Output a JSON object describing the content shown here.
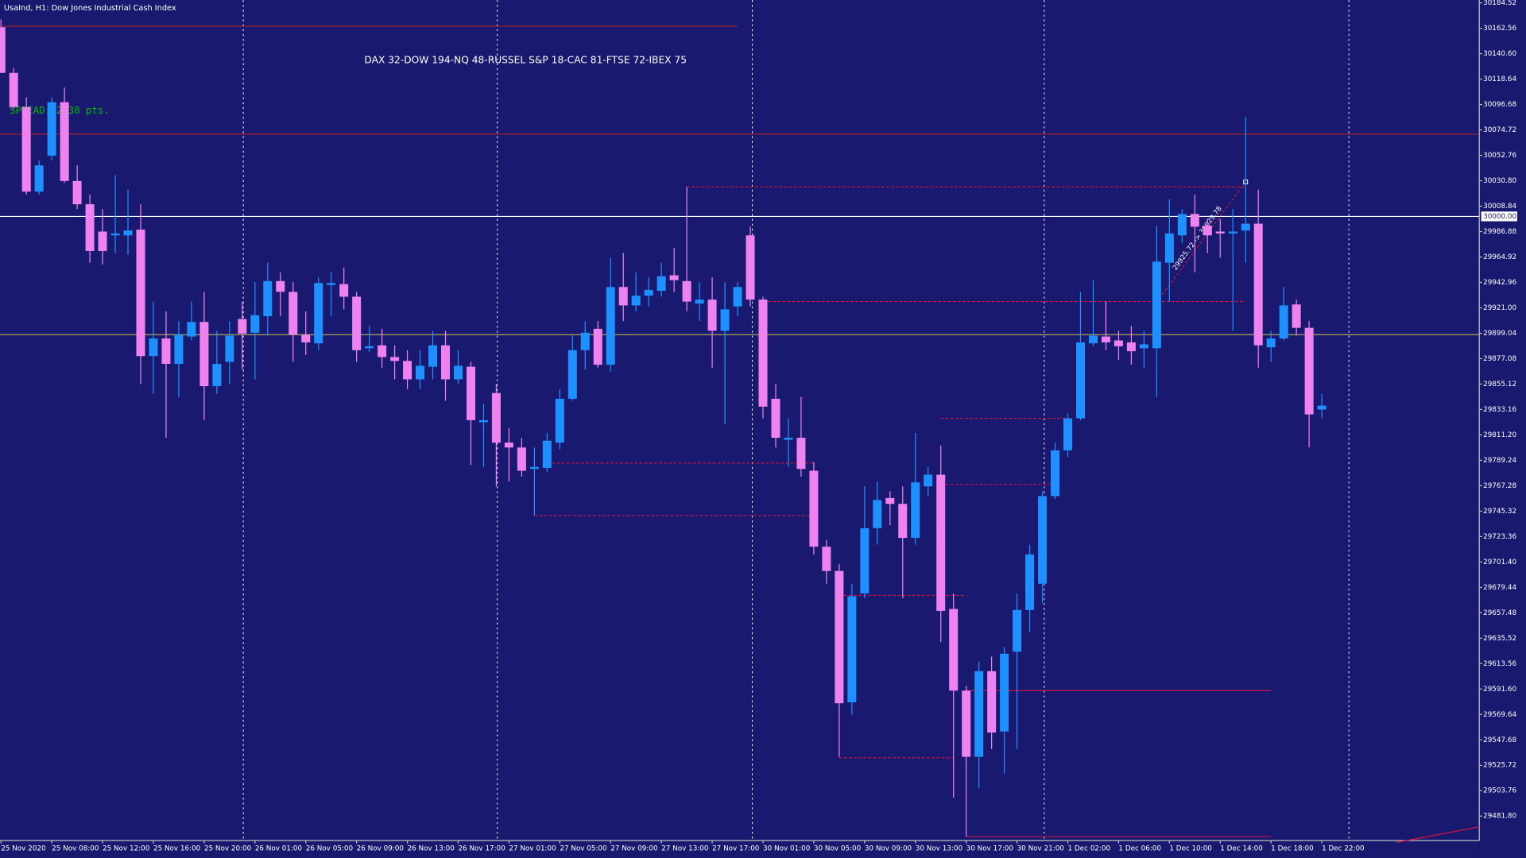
{
  "chart_data": {
    "type": "candlestick",
    "title": "UsaInd, H1: Dow Jones Industrial Cash Index",
    "annotation": "DAX 32-DOW 194-NQ 48-RUSSEL S&P 18-CAC 81-FTSE 72-IBEX 75",
    "spread_text": "SPREAD: 2.38 pts.",
    "up_color": "#1e90ff",
    "down_color": "#ee82ee",
    "ylim": [
      29460.7,
      30187.0
    ],
    "yticks": [
      30184.52,
      30162.56,
      {
        "value": 30140.6,
        "label": "30140.60"
      },
      30118.64,
      30096.68,
      30074.72,
      30052.76,
      {
        "value": 30030.8,
        "label": "30030.80"
      },
      30008.84,
      29986.88,
      29964.92,
      29942.96,
      {
        "value": 29921,
        "label": "29921.00"
      },
      29899.04,
      29877.08,
      29855.12,
      29833.16,
      {
        "value": 29811.2,
        "label": "29811.20"
      },
      29789.24,
      29767.28,
      29745.32,
      29723.36,
      {
        "value": 29701.4,
        "label": "29701.40"
      },
      29679.44,
      29657.48,
      29635.52,
      29613.56,
      {
        "value": 29591.6,
        "label": "29591.60"
      },
      29569.64,
      29547.68,
      29525.72,
      29503.76,
      {
        "value": 29481.8,
        "label": "29481.80"
      }
    ],
    "categories": [
      "25 Nov 2020",
      null,
      null,
      null,
      "25 Nov 08:00",
      null,
      null,
      null,
      "25 Nov 12:00",
      null,
      null,
      null,
      "25 Nov 16:00",
      null,
      null,
      null,
      "25 Nov 20:00",
      null,
      null,
      null,
      "26 Nov 01:00",
      null,
      null,
      null,
      "26 Nov 05:00",
      null,
      null,
      null,
      "26 Nov 09:00",
      null,
      null,
      null,
      "26 Nov 13:00",
      null,
      null,
      null,
      "26 Nov 17:00",
      null,
      null,
      null,
      "27 Nov 01:00",
      null,
      null,
      null,
      "27 Nov 05:00",
      null,
      null,
      null,
      "27 Nov 09:00",
      null,
      null,
      null,
      "27 Nov 13:00",
      null,
      null,
      null,
      "27 Nov 17:00",
      null,
      null,
      null,
      "30 Nov 01:00",
      null,
      null,
      null,
      "30 Nov 05:00",
      null,
      null,
      null,
      "30 Nov 09:00",
      null,
      null,
      null,
      "30 Nov 13:00",
      null,
      null,
      null,
      "30 Nov 17:00",
      null,
      null,
      null,
      "30 Nov 21:00",
      null,
      null,
      null,
      "1 Dec 02:00",
      null,
      null,
      null,
      "1 Dec 06:00",
      null,
      null,
      null,
      "1 Dec 10:00",
      null,
      null,
      null,
      "1 Dec 14:00",
      null,
      null,
      null,
      "1 Dec 18:00",
      null,
      null,
      null,
      "1 Dec 22:00"
    ],
    "open": [
      30163.5,
      30124.0,
      30094.5,
      30021.4,
      30052.5,
      30098.7,
      30030.6,
      30010.5,
      29986.9,
      29983.6,
      29983.6,
      29988.6,
      29879.3,
      29894.5,
      29872.6,
      29896.2,
      29908.8,
      29853.3,
      29874.3,
      29911.3,
      29899.5,
      29913.8,
      29944.1,
      29934.8,
      29897.8,
      29890.3,
      29940.7,
      29941.5,
      29930.6,
      29886.1,
      29888.6,
      29878.5,
      29875.1,
      29859.2,
      29870.1,
      29888.6,
      29859.2,
      29870.1,
      29822.2,
      29847.4,
      29804.5,
      29800.3,
      29781.8,
      29782.7,
      29804.5,
      29842.4,
      29884.4,
      29902.9,
      29871.8,
      29939.0,
      29923.1,
      29931.5,
      29935.7,
      29949.1,
      29944.1,
      29924.7,
      29928.1,
      29901.2,
      29922.2,
      29983.6,
      29928.1,
      29842.4,
      29807.0,
      29808.7,
      29780.2,
      29714.6,
      29693.6,
      29580.1,
      29674.2,
      29730.6,
      29756.6,
      29751.6,
      29722.2,
      29766.7,
      29776.8,
      29660.8,
      29590.2,
      29533.0,
      29607.0,
      29554.9,
      29623.8,
      29659.9,
      29682.6,
      29758.3,
      29797.8,
      29825.5,
      29890.3,
      29896.2,
      29892.8,
      29891.1,
      29886.1,
      29886.1,
      29960.0,
      29983.6,
      30002.1,
      29992.0,
      29986.9,
      29985.3,
      29987.8,
      29993.7,
      29886.9,
      29894.5,
      29923.9,
      29903.7,
      29833.1
    ],
    "high": [
      30170.2,
      30128.2,
      30102.9,
      30048.3,
      30102.9,
      30111.4,
      30044.1,
      30018.9,
      30006.3,
      30035.7,
      30023.1,
      30010.5,
      29926.4,
      29918.0,
      29909.6,
      29926.4,
      29934.8,
      29901.2,
      29909.6,
      29926.4,
      29943.2,
      29960.0,
      29951.6,
      29943.2,
      29918.0,
      29947.4,
      29951.6,
      29955.8,
      29934.8,
      29905.4,
      29902.9,
      29888.6,
      29884.4,
      29884.4,
      29901.2,
      29901.2,
      29884.4,
      29874.3,
      29838.2,
      29855.0,
      29817.1,
      29808.7,
      29800.3,
      29812.9,
      29850.8,
      29897.0,
      29909.6,
      29909.6,
      29964.2,
      29968.4,
      29951.6,
      29947.4,
      29960.0,
      29972.7,
      30025.6,
      29943.2,
      29947.4,
      29943.2,
      29943.2,
      29991.1,
      29930.6,
      29855.0,
      29825.5,
      29844.0,
      29787.7,
      29720.5,
      29699.5,
      29682.6,
      29766.7,
      29770.9,
      29762.5,
      29766.7,
      29812.9,
      29783.5,
      29802.0,
      29674.2,
      29594.4,
      29615.4,
      29619.6,
      29628.0,
      29674.2,
      29716.3,
      29762.5,
      29804.5,
      29829.7,
      29934.8,
      29944.9,
      29926.4,
      29901.2,
      29905.4,
      29901.2,
      29992.0,
      30014.7,
      30006.3,
      30018.9,
      29997.9,
      29997.9,
      30006.3,
      30086.1,
      30023.1,
      29901.2,
      29939.0,
      29928.1,
      29909.6,
      29846.6
    ],
    "low": [
      30124.0,
      30092.9,
      30018.9,
      30018.9,
      30048.3,
      30029.0,
      30006.3,
      29960.0,
      29958.4,
      29968.4,
      29966.8,
      29855.0,
      29846.6,
      29808.7,
      29844.0,
      29892.8,
      29823.9,
      29846.6,
      29855.0,
      29867.6,
      29859.2,
      29897.0,
      29913.8,
      29874.3,
      29880.2,
      29884.4,
      29913.8,
      29919.7,
      29874.3,
      29882.7,
      29869.3,
      29859.2,
      29850.8,
      29850.8,
      29859.2,
      29840.7,
      29855.0,
      29785.2,
      29783.5,
      29766.7,
      29770.9,
      29775.1,
      29741.5,
      29779.3,
      29798.6,
      29840.7,
      29867.6,
      29869.3,
      29865.9,
      29909.6,
      29918.0,
      29922.2,
      29930.6,
      29934.8,
      29918.0,
      29909.6,
      29869.3,
      29820.5,
      29913.8,
      29922.2,
      29825.5,
      29800.3,
      29783.5,
      29775.1,
      29707.9,
      29682.6,
      29533.0,
      29569.2,
      29670.0,
      29716.3,
      29733.1,
      29670.0,
      29716.3,
      29758.3,
      29632.2,
      29497.7,
      29464.1,
      29506.1,
      29539.7,
      29518.7,
      29539.7,
      29640.6,
      29665.8,
      29755.8,
      29791.9,
      29823.9,
      29887.8,
      29884.4,
      29876.0,
      29871.8,
      29869.3,
      29844.0,
      29926.4,
      29976.9,
      29951.6,
      29968.4,
      29964.2,
      29901.2,
      29960.0,
      29869.3,
      29874.3,
      29892.8,
      29897.0,
      29800.3,
      29825.5
    ],
    "close": [
      30124.0,
      30094.5,
      30021.4,
      30044.1,
      30098.7,
      30030.6,
      30010.5,
      29970.1,
      29970.1,
      29985.3,
      29987.8,
      29879.3,
      29894.5,
      29872.6,
      29897.8,
      29908.8,
      29853.3,
      29872.6,
      29897.0,
      29898.7,
      29914.7,
      29944.1,
      29934.8,
      29897.8,
      29891.1,
      29942.4,
      29942.4,
      29930.6,
      29884.4,
      29887.8,
      29878.5,
      29875.1,
      29859.2,
      29870.9,
      29888.6,
      29859.2,
      29870.9,
      29823.9,
      29823.9,
      29804.5,
      29800.3,
      29780.2,
      29783.5,
      29806.2,
      29842.4,
      29884.4,
      29899.5,
      29871.8,
      29939.0,
      29923.1,
      29931.5,
      29936.5,
      29948.3,
      29944.9,
      29926.4,
      29928.1,
      29901.2,
      29919.7,
      29939.0,
      29928.1,
      29835.6,
      29808.7,
      29808.7,
      29781.8,
      29714.6,
      29693.6,
      29579.3,
      29671.7,
      29730.6,
      29754.9,
      29751.6,
      29722.2,
      29770.1,
      29776.8,
      29659.1,
      29590.2,
      29533.0,
      29607.0,
      29554.0,
      29622.1,
      29659.9,
      29707.9,
      29758.3,
      29797.8,
      29825.5,
      29891.1,
      29897.0,
      29891.1,
      29887.8,
      29883.5,
      29889.4,
      29960.9,
      29985.3,
      30002.1,
      29991.1,
      29983.6,
      29985.3,
      29986.9,
      29993.7,
      29888.6,
      29894.5,
      29923.1,
      29903.7,
      29828.9,
      29836.5
    ],
    "levels": [
      {
        "value": 30164.3,
        "color": "#b22222",
        "style": "solid",
        "from": 0,
        "to": 58
      },
      {
        "value": 30071.0,
        "color": "#b22222",
        "style": "solid"
      },
      {
        "value": 30000,
        "label": "30000.00",
        "color": "#ffffff",
        "style": "solid"
      },
      {
        "value": 29897.8,
        "color": "#d8c84a",
        "style": "solid"
      },
      {
        "value": 29590.2,
        "color": "#dc143c",
        "style": "solid",
        "from": 76,
        "to": 100
      },
      {
        "value": 29464.1,
        "color": "#dc143c",
        "style": "solid",
        "from": 76,
        "to": 100
      },
      {
        "value": 30025.6,
        "color": "#dc143c",
        "style": "dashed",
        "from": 54,
        "to": 98
      },
      {
        "value": 29926.4,
        "color": "#dc143c",
        "style": "dashed",
        "from": 60,
        "to": 98
      },
      {
        "value": 29825.5,
        "color": "#dc143c",
        "style": "dashed",
        "from": 74,
        "to": 84
      },
      {
        "value": 29786.9,
        "color": "#dc143c",
        "style": "dashed",
        "from": 43,
        "to": 64
      },
      {
        "value": 29768.4,
        "color": "#dc143c",
        "style": "dashed",
        "from": 74,
        "to": 83
      },
      {
        "value": 29741.5,
        "color": "#dc143c",
        "style": "dashed",
        "from": 42,
        "to": 64
      },
      {
        "value": 29672.5,
        "color": "#dc143c",
        "style": "dashed",
        "from": 66,
        "to": 76
      },
      {
        "value": 29532.2,
        "color": "#dc143c",
        "style": "dashed",
        "from": 66,
        "to": 75
      }
    ],
    "trendline": {
      "from": 91,
      "to": 98,
      "start": 29925.72,
      "end": 30029.78,
      "label": "29925.72 -> 30029.78",
      "color": "#dc143c"
    }
  }
}
